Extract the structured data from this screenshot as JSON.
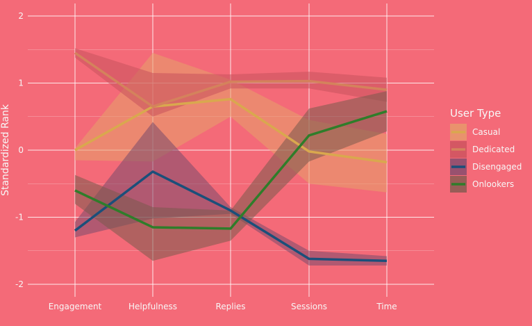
{
  "chart_data": {
    "type": "line",
    "categories": [
      "Engagement",
      "Helpfulness",
      "Replies",
      "Sessions",
      "Time"
    ],
    "ylabel": "Standardized Rank",
    "xlabel": "",
    "ylim": [
      -2.2,
      2.2
    ],
    "yticks": [
      -2,
      -1,
      0,
      1,
      2
    ],
    "ytick_labels": [
      "-2",
      "-1",
      "0",
      "1",
      "2"
    ],
    "grid": true,
    "legend": {
      "title": "User Type",
      "position": "right"
    },
    "series": [
      {
        "name": "Casual",
        "color": "#d9a84e",
        "band_color": "#e6a069",
        "values": [
          0.0,
          0.65,
          0.76,
          -0.02,
          -0.18
        ],
        "lower": [
          -0.15,
          -0.17,
          0.5,
          -0.5,
          -0.63
        ],
        "upper": [
          0.03,
          1.45,
          1.05,
          0.45,
          0.24
        ]
      },
      {
        "name": "Dedicated",
        "color": "#d4825c",
        "band_color": "#c9525c",
        "values": [
          1.45,
          0.65,
          1.02,
          1.03,
          0.9
        ],
        "lower": [
          1.38,
          0.5,
          0.92,
          0.92,
          0.72
        ],
        "upper": [
          1.52,
          1.15,
          1.13,
          1.17,
          1.08
        ]
      },
      {
        "name": "Disengaged",
        "color": "#1b4f7a",
        "band_color": "#7a4a6c",
        "values": [
          -1.2,
          -0.32,
          -0.9,
          -1.62,
          -1.65
        ],
        "lower": [
          -1.3,
          -1.02,
          -0.95,
          -1.72,
          -1.72
        ],
        "upper": [
          -1.07,
          0.42,
          -0.85,
          -1.5,
          -1.58
        ]
      },
      {
        "name": "Onlookers",
        "color": "#2f7d2a",
        "band_color": "#7a5a4c",
        "values": [
          -0.6,
          -1.15,
          -1.17,
          0.22,
          0.58
        ],
        "lower": [
          -0.8,
          -1.65,
          -1.35,
          -0.17,
          0.28
        ],
        "upper": [
          -0.37,
          -0.85,
          -0.9,
          0.62,
          0.88
        ]
      }
    ]
  }
}
